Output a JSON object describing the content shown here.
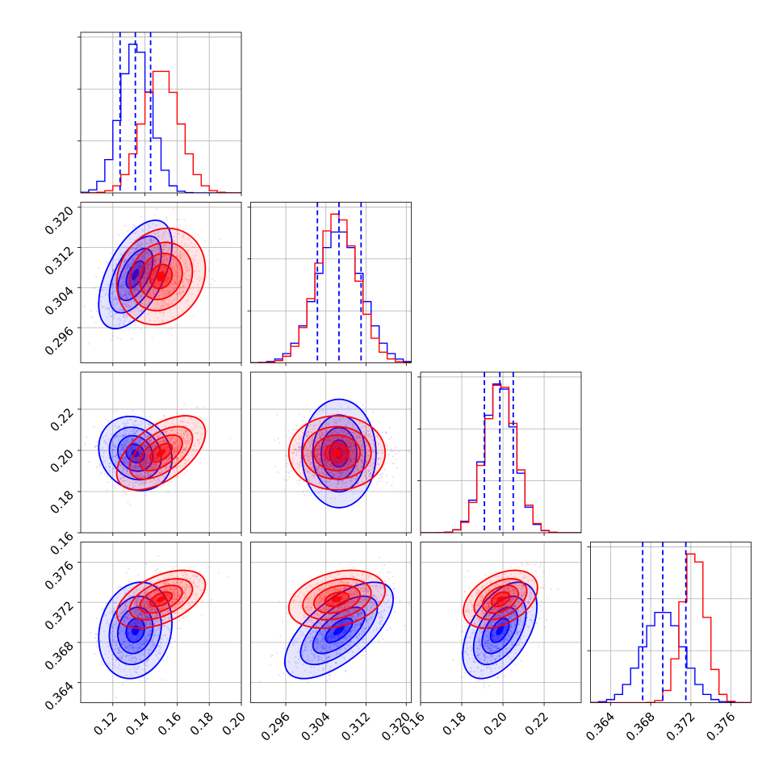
{
  "chart_data": {
    "type": "corner",
    "grid": true,
    "params": [
      {
        "range": [
          0.1,
          0.2
        ],
        "ticks": [
          0.12,
          0.14,
          0.16,
          0.18,
          0.2
        ],
        "labels": [
          "0.12",
          "0.14",
          "0.16",
          "0.18",
          "0.20"
        ]
      },
      {
        "range": [
          0.289,
          0.321
        ],
        "ticks": [
          0.296,
          0.304,
          0.312,
          0.32
        ],
        "labels": [
          "0.296",
          "0.304",
          "0.312",
          "0.320"
        ]
      },
      {
        "range": [
          0.16,
          0.238
        ],
        "ticks": [
          0.16,
          0.18,
          0.2,
          0.22
        ],
        "labels": [
          "0.16",
          "0.18",
          "0.20",
          "0.22"
        ]
      },
      {
        "range": [
          0.362,
          0.378
        ],
        "ticks": [
          0.364,
          0.368,
          0.372,
          0.376
        ],
        "labels": [
          "0.364",
          "0.368",
          "0.372",
          "0.376"
        ]
      }
    ],
    "series": [
      {
        "color": "#0000ff",
        "mean": [
          0.134,
          0.3066,
          0.1985,
          0.3692
        ],
        "sd": [
          0.0095,
          0.0045,
          0.0075,
          0.002
        ],
        "quantiles": [
          [
            0.1245,
            0.134,
            0.1435
          ],
          [
            0.3023,
            0.3066,
            0.311
          ],
          [
            0.191,
            0.1985,
            0.205
          ],
          [
            0.3672,
            0.3692,
            0.3715
          ]
        ],
        "corr": [
          [
            1,
            0.55,
            -0.15,
            0.15
          ],
          [
            0.55,
            1,
            0.0,
            0.65
          ],
          [
            -0.15,
            0.0,
            1,
            0.5
          ],
          [
            0.15,
            0.65,
            0.5,
            1
          ]
        ]
      },
      {
        "color": "#ff0000",
        "mean": [
          0.15,
          0.3062,
          0.1988,
          0.3723
        ],
        "sd": [
          0.0115,
          0.004,
          0.0075,
          0.0012
        ],
        "quantiles": [],
        "corr": [
          [
            1,
            0.15,
            0.55,
            0.5
          ],
          [
            0.15,
            1,
            0.0,
            0.3
          ],
          [
            0.55,
            0.0,
            1,
            0.4
          ],
          [
            0.5,
            0.3,
            0.4,
            1
          ]
        ]
      }
    ]
  }
}
